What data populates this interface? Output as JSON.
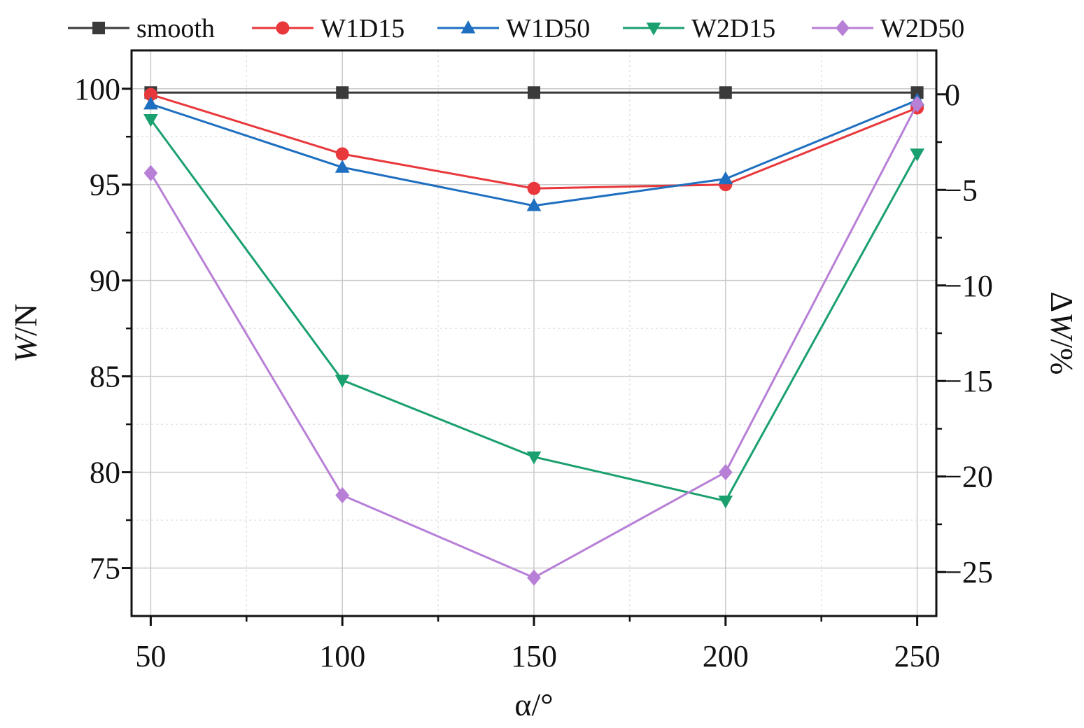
{
  "chart_data": {
    "type": "line",
    "title": "",
    "xlabel": "α/°",
    "ylabel_left_italic": "W",
    "ylabel_left_unit": "/N",
    "ylabel_right_prefix": "Δ",
    "ylabel_right_italic": "W",
    "ylabel_right_unit": "/%",
    "x": [
      50,
      100,
      150,
      200,
      250
    ],
    "xlim": [
      45,
      255
    ],
    "xticks": [
      50,
      100,
      150,
      200,
      250
    ],
    "xtick_labels": [
      "50",
      "100",
      "150",
      "200",
      "250"
    ],
    "ylim_left": [
      72.5,
      102
    ],
    "yticks_left": [
      75,
      80,
      85,
      90,
      95,
      100
    ],
    "ytick_labels_left": [
      "75",
      "80",
      "85",
      "90",
      "95",
      "100"
    ],
    "ylim_right": [
      -27.3,
      2.3
    ],
    "yticks_right": [
      0,
      -5,
      -10,
      -15,
      -20,
      -25
    ],
    "ytick_labels_right": [
      "0",
      "−5",
      "−10",
      "−15",
      "−20",
      "−25"
    ],
    "grid": true,
    "legend_position": "top",
    "series": [
      {
        "name": "smooth",
        "color": "#3a3a3a",
        "marker": "square",
        "values": [
          99.8,
          99.8,
          99.8,
          99.8,
          99.8
        ]
      },
      {
        "name": "W1D15",
        "color": "#e8383c",
        "marker": "circle",
        "values": [
          99.7,
          96.6,
          94.8,
          95.0,
          99.0
        ]
      },
      {
        "name": "W1D50",
        "color": "#1e6fc0",
        "marker": "triangle-up",
        "values": [
          99.2,
          95.9,
          93.9,
          95.3,
          99.4
        ]
      },
      {
        "name": "W2D15",
        "color": "#1aa06e",
        "marker": "triangle-down",
        "values": [
          98.4,
          84.8,
          80.8,
          78.5,
          96.6
        ]
      },
      {
        "name": "W2D50",
        "color": "#b77fd6",
        "marker": "diamond",
        "values": [
          95.6,
          78.8,
          74.5,
          80.0,
          99.2
        ]
      }
    ]
  }
}
